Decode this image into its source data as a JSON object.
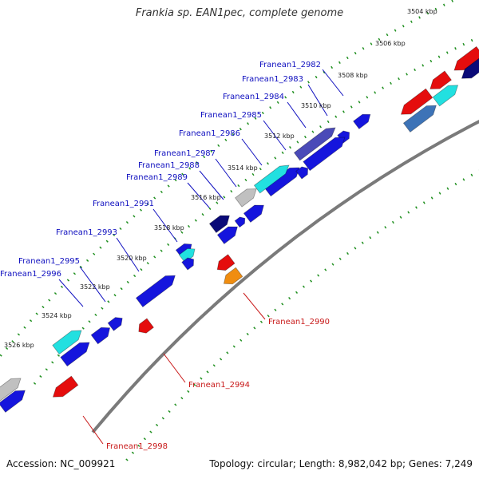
{
  "title": "Frankia sp. EAN1pec, complete genome",
  "footer": {
    "accession": "Accession: NC_009921",
    "summary": "Topology: circular; Length: 8,982,042 bp; Genes: 7,249"
  },
  "colors": {
    "backbone": "#7a7a7a",
    "dots": "#1f8f1f",
    "gene_blue": "#1515dd",
    "gene_navy": "#0a0a78",
    "gene_cyan": "#22e0e0",
    "gene_steel": "#3d73b7",
    "gene_purple": "#4a4ab8",
    "gene_gray": "#c0c0c0",
    "gene_red": "#e50d0d",
    "gene_orange": "#f08d10",
    "label_blue": "#0f0fbf",
    "label_red": "#c81818"
  },
  "kbp_labels": [
    "3504 kbp",
    "3506 kbp",
    "3508 kbp",
    "3510 kbp",
    "3512 kbp",
    "3514 kbp",
    "3516 kbp",
    "3518 kbp",
    "3520 kbp",
    "3522 kbp",
    "3524 kbp",
    "3526 kbp"
  ],
  "genes": [
    {
      "name": "Franean1_2982",
      "color": "gene_navy"
    },
    {
      "name": "Franean1_2983",
      "color": "gene_blue"
    },
    {
      "name": "Franean1_2984",
      "color": "gene_blue"
    },
    {
      "name": "Franean1_2985",
      "color": "gene_purple"
    },
    {
      "name": "Franean1_2986",
      "color": "gene_blue"
    },
    {
      "name": "Franean1_2987",
      "color": "gene_blue"
    },
    {
      "name": "Franean1_2988",
      "color": "gene_cyan"
    },
    {
      "name": "Franean1_2989",
      "color": "gene_gray"
    },
    {
      "name": "Franean1_2990",
      "color": "gene_orange"
    },
    {
      "name": "Franean1_2991",
      "color": "gene_navy"
    },
    {
      "name": "Franean1_2993",
      "color": "gene_cyan"
    },
    {
      "name": "Franean1_2994",
      "color": "gene_red"
    },
    {
      "name": "Franean1_2995",
      "color": "gene_blue"
    },
    {
      "name": "Franean1_2996",
      "color": "gene_blue"
    },
    {
      "name": "Franean1_2998",
      "color": "gene_red"
    }
  ]
}
